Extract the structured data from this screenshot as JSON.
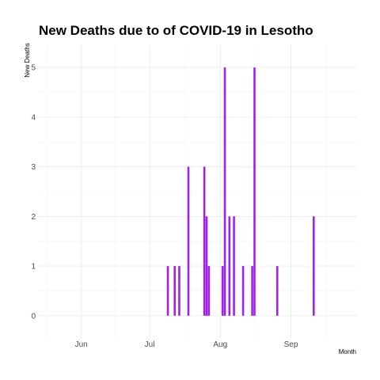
{
  "chart_data": {
    "type": "bar",
    "title": "New Deaths due to of COVID-19 in Lesotho",
    "xlabel": "Month",
    "ylabel": "New Deaths",
    "x_type": "date",
    "xlim": [
      "2020-05-13",
      "2020-09-30"
    ],
    "ylim": [
      -0.45,
      5.45
    ],
    "x_ticks": [
      {
        "date": "2020-06-01",
        "label": "Jun"
      },
      {
        "date": "2020-07-01",
        "label": "Jul"
      },
      {
        "date": "2020-08-01",
        "label": "Aug"
      },
      {
        "date": "2020-09-01",
        "label": "Sep"
      }
    ],
    "y_ticks": [
      0,
      1,
      2,
      3,
      4,
      5
    ],
    "grid": true,
    "bar_color": "#a020f0",
    "data": [
      {
        "date": "2020-07-09",
        "value": 1
      },
      {
        "date": "2020-07-12",
        "value": 1
      },
      {
        "date": "2020-07-14",
        "value": 1
      },
      {
        "date": "2020-07-18",
        "value": 3
      },
      {
        "date": "2020-07-25",
        "value": 3
      },
      {
        "date": "2020-07-26",
        "value": 2
      },
      {
        "date": "2020-07-27",
        "value": 1
      },
      {
        "date": "2020-07-29",
        "value": 0
      },
      {
        "date": "2020-08-02",
        "value": 1
      },
      {
        "date": "2020-08-03",
        "value": 5
      },
      {
        "date": "2020-08-05",
        "value": 2
      },
      {
        "date": "2020-08-07",
        "value": 2
      },
      {
        "date": "2020-08-11",
        "value": 1
      },
      {
        "date": "2020-08-15",
        "value": 1
      },
      {
        "date": "2020-08-16",
        "value": 5
      },
      {
        "date": "2020-08-26",
        "value": 1
      },
      {
        "date": "2020-09-11",
        "value": 2
      }
    ]
  }
}
